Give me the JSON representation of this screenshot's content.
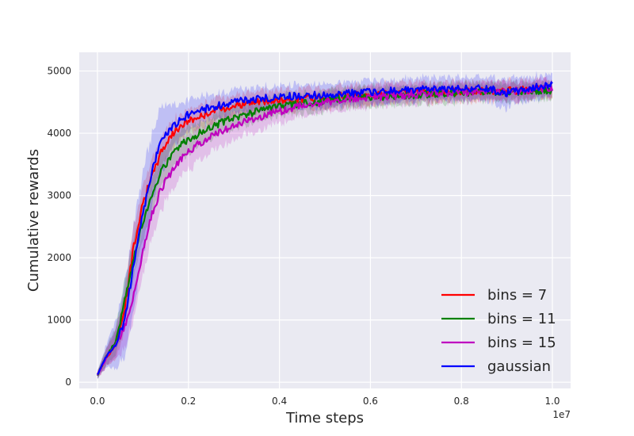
{
  "chart_data": {
    "type": "line",
    "title": "",
    "xlabel": "Time steps",
    "ylabel": "Cumulative rewards",
    "x_offset_label": "1e7",
    "xlim": [
      -0.04,
      1.04
    ],
    "ylim": [
      -100,
      5300
    ],
    "x_ticks": [
      0.0,
      0.2,
      0.4,
      0.6,
      0.8,
      1.0
    ],
    "x_tick_labels": [
      "0.0",
      "0.2",
      "0.4",
      "0.6",
      "0.8",
      "1.0"
    ],
    "y_ticks": [
      0,
      1000,
      2000,
      3000,
      4000,
      5000
    ],
    "y_tick_labels": [
      "0",
      "1000",
      "2000",
      "3000",
      "4000",
      "5000"
    ],
    "grid": true,
    "legend_position": "lower-right",
    "series": [
      {
        "name": "bins = 7",
        "color": "#ff0000",
        "x": [
          0.0,
          0.02,
          0.04,
          0.06,
          0.08,
          0.1,
          0.12,
          0.14,
          0.16,
          0.18,
          0.2,
          0.22,
          0.25,
          0.28,
          0.3,
          0.35,
          0.4,
          0.45,
          0.5,
          0.55,
          0.6,
          0.65,
          0.7,
          0.75,
          0.8,
          0.85,
          0.9,
          0.95,
          1.0
        ],
        "y": [
          120,
          400,
          600,
          1200,
          2200,
          2900,
          3300,
          3700,
          3950,
          4100,
          4200,
          4250,
          4350,
          4400,
          4450,
          4500,
          4520,
          4560,
          4580,
          4600,
          4620,
          4640,
          4650,
          4660,
          4670,
          4680,
          4680,
          4700,
          4720
        ],
        "band": [
          60,
          150,
          250,
          350,
          350,
          300,
          300,
          250,
          250,
          200,
          200,
          200,
          200,
          180,
          180,
          180,
          180,
          170,
          170,
          170,
          170,
          170,
          160,
          160,
          160,
          160,
          160,
          150,
          150
        ]
      },
      {
        "name": "bins = 11",
        "color": "#008000",
        "x": [
          0.0,
          0.02,
          0.04,
          0.06,
          0.08,
          0.1,
          0.12,
          0.14,
          0.16,
          0.18,
          0.2,
          0.22,
          0.25,
          0.28,
          0.3,
          0.35,
          0.4,
          0.45,
          0.5,
          0.55,
          0.6,
          0.65,
          0.7,
          0.75,
          0.8,
          0.85,
          0.9,
          0.95,
          1.0
        ],
        "y": [
          120,
          420,
          650,
          1300,
          2000,
          2600,
          3000,
          3400,
          3600,
          3800,
          3900,
          3980,
          4100,
          4200,
          4250,
          4350,
          4420,
          4480,
          4520,
          4560,
          4580,
          4600,
          4620,
          4640,
          4650,
          4660,
          4670,
          4680,
          4680
        ],
        "band": [
          60,
          150,
          250,
          350,
          350,
          300,
          300,
          300,
          250,
          250,
          250,
          200,
          200,
          200,
          200,
          180,
          180,
          170,
          170,
          170,
          170,
          160,
          160,
          160,
          160,
          150,
          150,
          150,
          150
        ]
      },
      {
        "name": "bins = 15",
        "color": "#bf00bf",
        "x": [
          0.0,
          0.02,
          0.04,
          0.06,
          0.08,
          0.1,
          0.12,
          0.14,
          0.16,
          0.18,
          0.2,
          0.22,
          0.25,
          0.28,
          0.3,
          0.35,
          0.4,
          0.45,
          0.5,
          0.55,
          0.6,
          0.65,
          0.7,
          0.75,
          0.8,
          0.85,
          0.9,
          0.95,
          1.0
        ],
        "y": [
          120,
          400,
          600,
          900,
          1400,
          2100,
          2700,
          3100,
          3350,
          3550,
          3700,
          3820,
          3950,
          4050,
          4120,
          4250,
          4350,
          4450,
          4500,
          4550,
          4580,
          4600,
          4620,
          4640,
          4660,
          4670,
          4680,
          4700,
          4720
        ],
        "band": [
          60,
          150,
          250,
          350,
          400,
          400,
          400,
          350,
          350,
          300,
          300,
          280,
          250,
          250,
          230,
          220,
          200,
          180,
          170,
          170,
          170,
          160,
          160,
          160,
          160,
          150,
          150,
          150,
          150
        ]
      },
      {
        "name": "gaussian",
        "color": "#0000ff",
        "x": [
          0.0,
          0.02,
          0.04,
          0.06,
          0.08,
          0.1,
          0.12,
          0.14,
          0.16,
          0.18,
          0.2,
          0.22,
          0.25,
          0.28,
          0.3,
          0.35,
          0.4,
          0.45,
          0.5,
          0.55,
          0.6,
          0.65,
          0.7,
          0.75,
          0.8,
          0.85,
          0.9,
          0.95,
          1.0
        ],
        "y": [
          120,
          420,
          600,
          1000,
          1900,
          2700,
          3400,
          3900,
          4050,
          4200,
          4300,
          4350,
          4420,
          4470,
          4500,
          4550,
          4580,
          4600,
          4620,
          4640,
          4660,
          4680,
          4700,
          4710,
          4720,
          4730,
          4650,
          4720,
          4780
        ],
        "band": [
          60,
          200,
          400,
          600,
          700,
          700,
          650,
          550,
          400,
          300,
          250,
          230,
          220,
          200,
          200,
          200,
          200,
          200,
          200,
          190,
          190,
          190,
          190,
          190,
          190,
          190,
          250,
          200,
          180
        ]
      }
    ]
  }
}
